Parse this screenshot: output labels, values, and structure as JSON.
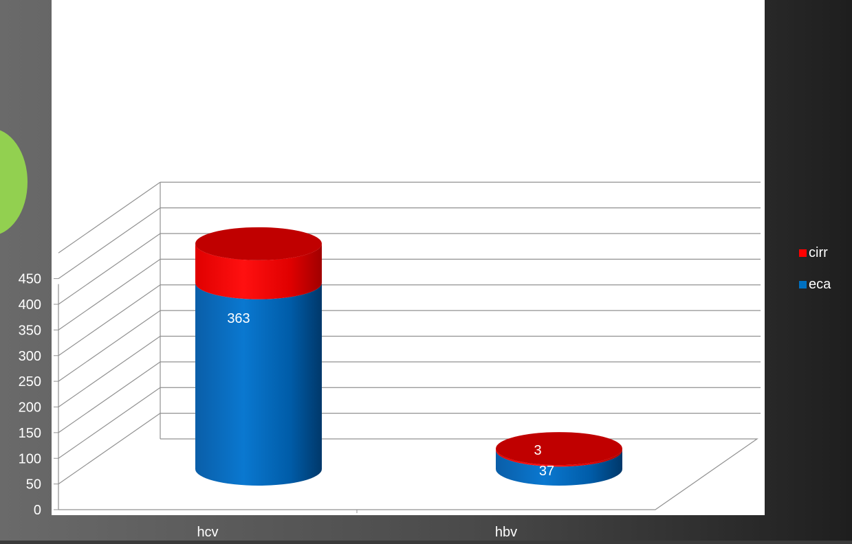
{
  "chart_data": {
    "type": "bar",
    "stacked": true,
    "style": "3d-cylinder",
    "categories": [
      "hcv",
      "hbv"
    ],
    "series": [
      {
        "name": "eca",
        "values": [
          363,
          37
        ],
        "color": "#0070c0"
      },
      {
        "name": "cirr",
        "values": [
          76,
          3
        ],
        "color": "#ff0000"
      }
    ],
    "yticks": [
      0,
      50,
      100,
      150,
      200,
      250,
      300,
      350,
      400,
      450
    ],
    "ylim": [
      0,
      500
    ],
    "grid": true,
    "legend": "right",
    "legend_order": [
      "cirr",
      "eca"
    ],
    "title": "",
    "xlabel": "",
    "ylabel": ""
  },
  "colors": {
    "background": "#3a3a3a",
    "plot_area": "#ffffff",
    "gridline": "#909090",
    "tick_label": "#ffffff",
    "data_label": "#ffffff",
    "accent_green": "#92d050"
  }
}
